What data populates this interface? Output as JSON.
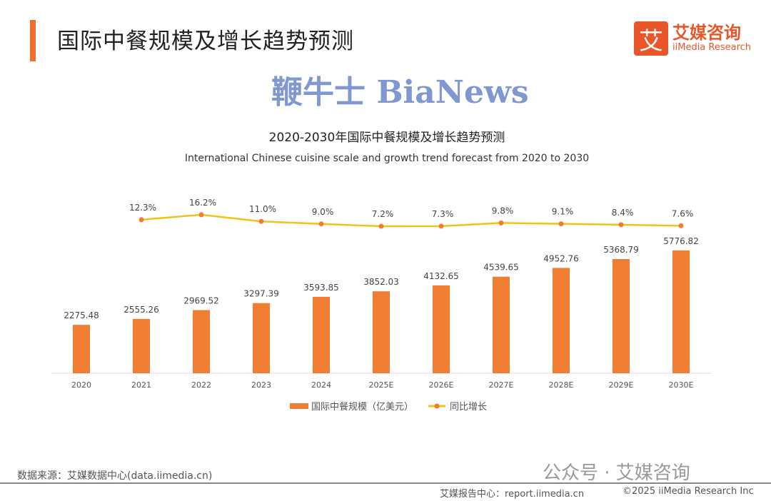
{
  "header": {
    "title": "国际中餐规模及增长趋势预测",
    "logo_mark": "艾",
    "logo_cn": "艾媒咨询",
    "logo_en": "iiMedia Research"
  },
  "chart_data": {
    "type": "bar+line",
    "title": "2020-2030年国际中餐规模及增长趋势预测",
    "subtitle": "International Chinese cuisine scale and growth trend forecast from 2020 to 2030",
    "categories": [
      "2020",
      "2021",
      "2022",
      "2023",
      "2024",
      "2025E",
      "2026E",
      "2027E",
      "2028E",
      "2029E",
      "2030E"
    ],
    "series": [
      {
        "name": "国际中餐规模（亿美元）",
        "type": "bar",
        "color": "#ef7d32",
        "values": [
          2275.48,
          2555.26,
          2969.52,
          3297.39,
          3593.85,
          3852.03,
          4132.65,
          4539.65,
          4952.76,
          5368.79,
          5776.82
        ]
      },
      {
        "name": "同比增长",
        "type": "line",
        "color": "#f2c21b",
        "values": [
          null,
          12.3,
          16.2,
          11.0,
          9.0,
          7.2,
          7.3,
          9.8,
          9.1,
          8.4,
          7.6
        ],
        "labels": [
          "",
          "12.3%",
          "16.2%",
          "11.0%",
          "9.0%",
          "7.2%",
          "7.3%",
          "9.8%",
          "9.1%",
          "8.4%",
          "7.6%"
        ]
      }
    ],
    "legend": "bottom"
  },
  "footer": {
    "source": "数据来源：艾媒数据中心(data.iimedia.cn)",
    "wechat": "公众号 · 艾媒咨询",
    "report": "艾媒报告中心：report.iimedia.cn",
    "copyright": "©2025  iiMedia Research  Inc",
    "watermark": "鞭牛士 BiaNews"
  }
}
